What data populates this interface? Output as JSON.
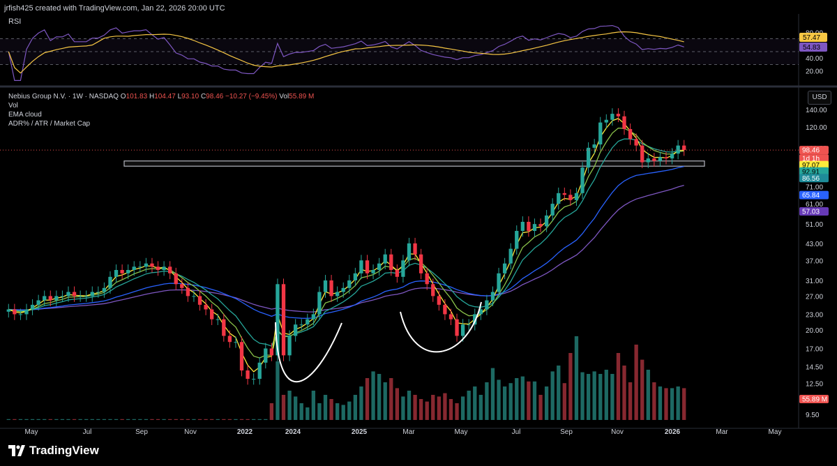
{
  "header": {
    "attribution": "jrfish425 created with TradingView.com, Jan 22, 2026 20:00 UTC"
  },
  "rsi_panel": {
    "label": "RSI",
    "levels": [
      "80.00",
      "60.00",
      "40.00",
      "20.00"
    ],
    "badges": [
      {
        "text": "57.47",
        "color": "#f7c744"
      },
      {
        "text": "54.83",
        "color": "#7e57c2"
      }
    ]
  },
  "main_panel": {
    "ohlc": {
      "symbol": "Nebius Group N.V. · 1W · NASDAQ",
      "o_label": "O",
      "o": "101.83",
      "h_label": "H",
      "h": "104.47",
      "l_label": "L",
      "l": "93.10",
      "c_label": "C",
      "c": "98.46",
      "change": "−10.27 (−9.45%)",
      "vol_label": "Vol",
      "vol": "55.89 M"
    },
    "indicators": [
      "Vol",
      "EMA cloud",
      "ADR% / ATR / Market Cap"
    ],
    "currency_button": "USD",
    "price_levels": [
      "140.00",
      "120.00",
      "100.00",
      "81.00",
      "71.00",
      "61.00",
      "51.00",
      "43.00",
      "37.00",
      "31.00",
      "27.00",
      "23.00",
      "20.00",
      "17.00",
      "14.50",
      "12.50",
      "9.50"
    ],
    "price_badges": [
      {
        "text": "98.46",
        "color": "#ef5350",
        "fg": "#ffffff"
      },
      {
        "text": "1d 1h",
        "color": "#ef5350",
        "fg": "#ffffff"
      },
      {
        "text": "97.07",
        "color": "#ffeb3b",
        "fg": "#000000"
      },
      {
        "text": "92.91",
        "color": "#26a69a",
        "fg": "#000000"
      },
      {
        "text": "86.56",
        "color": "#1e8c99",
        "fg": "#ffffff"
      },
      {
        "text": "65.84",
        "color": "#2962ff",
        "fg": "#ffffff"
      },
      {
        "text": "57.03",
        "color": "#673ab7",
        "fg": "#ffffff"
      },
      {
        "text": "55.89 M",
        "color": "#ef5350",
        "fg": "#ffffff"
      }
    ],
    "time_labels": [
      "May",
      "Jul",
      "Sep",
      "Nov",
      "2022",
      "2024",
      "2025",
      "Mar",
      "May",
      "Jul",
      "Sep",
      "Nov",
      "2026",
      "Mar",
      "May"
    ]
  },
  "footer": {
    "brand": "TradingView"
  },
  "colors": {
    "up": "#26a69a",
    "down": "#f23645",
    "ema_fast": "#ffeb3b",
    "ema_mid": "#8bc34a",
    "ema_slow": "#26a69a",
    "ema_blue": "#2962ff",
    "ema_purple": "#7e57c2"
  },
  "chart_data": {
    "type": "candlestick",
    "scale": "log",
    "ylim": [
      9.5,
      150
    ],
    "series": [
      {
        "name": "NBIS",
        "close": [
          24,
          23,
          23,
          24,
          25,
          26,
          27,
          26,
          27,
          27,
          28,
          27,
          27,
          27,
          28,
          28,
          29,
          32,
          34,
          33,
          34,
          35,
          35,
          36,
          35,
          34,
          35,
          33,
          30,
          29,
          27,
          27,
          25,
          24,
          22,
          22,
          19,
          18,
          18,
          14,
          13,
          13,
          15,
          17,
          16,
          30,
          16,
          19,
          21,
          21,
          22,
          23,
          28,
          31,
          27,
          28,
          29,
          31,
          33,
          37,
          33,
          34,
          36,
          39,
          34,
          32,
          37,
          43,
          39,
          33,
          30,
          27,
          25,
          23,
          22,
          19,
          21,
          21,
          23,
          24,
          26,
          28,
          33,
          36,
          41,
          48,
          52,
          48,
          51,
          50,
          55,
          61,
          67,
          66,
          63,
          67,
          84,
          100,
          103,
          125,
          128,
          135,
          132,
          118,
          108,
          102,
          88,
          91,
          89,
          92,
          91,
          95,
          102,
          98
        ]
      }
    ],
    "volume": [
      1,
      1,
      1,
      1,
      1,
      1,
      1,
      1,
      1,
      1,
      1,
      1,
      1,
      1,
      1,
      1,
      1,
      1,
      1,
      1,
      1,
      1,
      1,
      1,
      1,
      1,
      1,
      1,
      1,
      1,
      1,
      1,
      1,
      1,
      1,
      1,
      1,
      1,
      1,
      1,
      1,
      1,
      1,
      1,
      20,
      70,
      30,
      35,
      28,
      20,
      15,
      35,
      20,
      30,
      25,
      20,
      18,
      22,
      30,
      40,
      50,
      58,
      55,
      45,
      50,
      38,
      28,
      35,
      30,
      25,
      22,
      30,
      28,
      32,
      25,
      20,
      28,
      35,
      40,
      30,
      45,
      62,
      48,
      40,
      44,
      50,
      52,
      46,
      46,
      30,
      40,
      58,
      65,
      44,
      80,
      100,
      57,
      55,
      58,
      55,
      60,
      55,
      80,
      65,
      45,
      90,
      72,
      60,
      45,
      40,
      38,
      38,
      40,
      38
    ]
  }
}
